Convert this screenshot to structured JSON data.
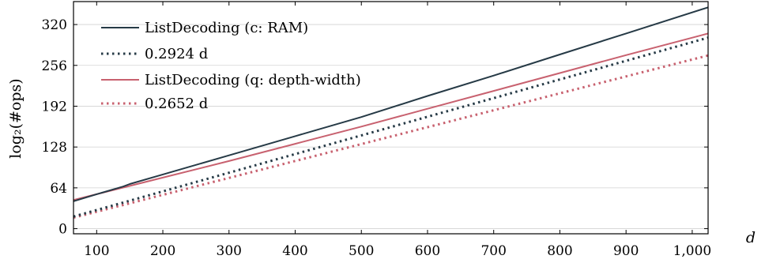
{
  "chart_data": {
    "type": "line",
    "xlabel": "d",
    "ylabel": "log₂(#ops)",
    "xlim": [
      65,
      1024
    ],
    "ylim": [
      -8,
      356
    ],
    "xticks": [
      100,
      200,
      300,
      400,
      500,
      600,
      700,
      800,
      900,
      1000
    ],
    "xtick_labels": [
      "100",
      "200",
      "300",
      "400",
      "500",
      "600",
      "700",
      "800",
      "900",
      "1,000"
    ],
    "yticks": [
      0,
      64,
      128,
      192,
      256,
      320
    ],
    "ytick_labels": [
      "0",
      "64",
      "128",
      "192",
      "256",
      "320"
    ],
    "grid": "horizontal",
    "legend_position": "top-left",
    "series": [
      {
        "name": "ListDecoding (c: RAM)",
        "color": "#263a46",
        "style": "solid",
        "x": [
          65,
          100,
          140,
          150,
          200,
          300,
          400,
          500,
          600,
          700,
          800,
          900,
          1024
        ],
        "y": [
          43,
          54,
          66,
          70,
          85,
          115,
          145,
          175,
          208,
          240,
          273,
          306,
          347
        ]
      },
      {
        "name": "0.2924 d",
        "color": "#263a46",
        "style": "dotted",
        "x": [
          65,
          1024
        ],
        "y": [
          19,
          299.4
        ]
      },
      {
        "name": "ListDecoding (q: depth-width)",
        "color": "#c8616f",
        "style": "solid",
        "x": [
          65,
          100,
          150,
          200,
          300,
          400,
          500,
          600,
          700,
          800,
          900,
          1024
        ],
        "y": [
          45,
          54,
          67,
          80,
          106,
          133,
          160,
          188,
          216,
          244,
          272,
          306
        ]
      },
      {
        "name": "0.2652 d",
        "color": "#c8616f",
        "style": "dotted",
        "x": [
          65,
          1024
        ],
        "y": [
          17.2,
          271.6
        ]
      }
    ]
  }
}
